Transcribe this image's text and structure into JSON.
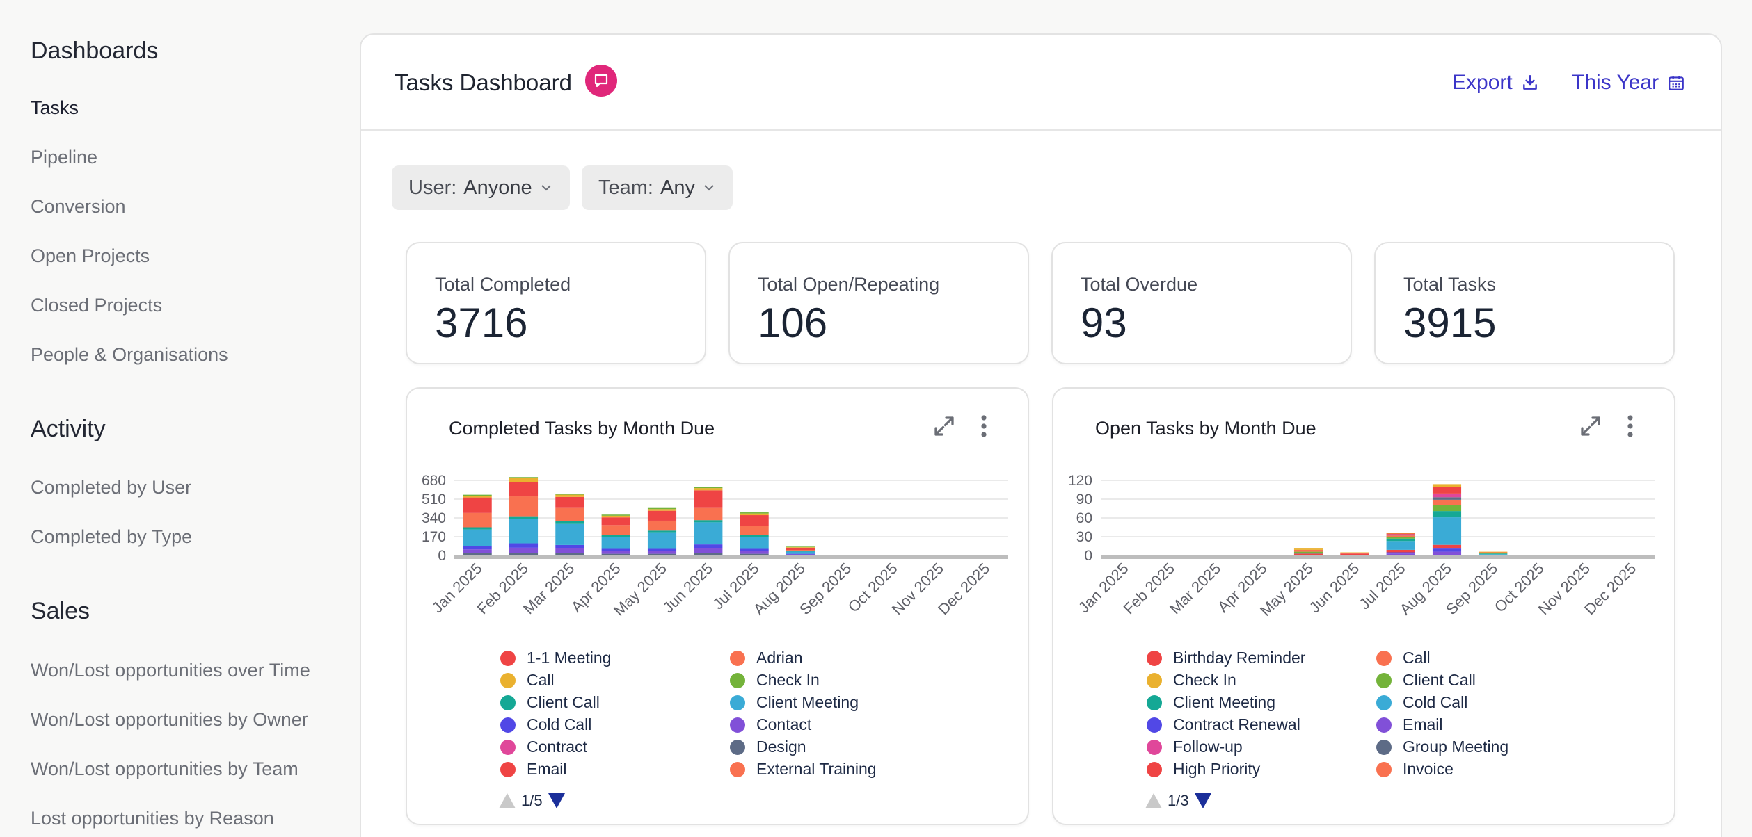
{
  "sidebar": {
    "sections": [
      {
        "heading": "Dashboards",
        "items": [
          "Tasks",
          "Pipeline",
          "Conversion",
          "Open Projects",
          "Closed Projects",
          "People & Organisations"
        ]
      },
      {
        "heading": "Activity",
        "items": [
          "Completed by User",
          "Completed by Type"
        ]
      },
      {
        "heading": "Sales",
        "items": [
          "Won/Lost opportunities over Time",
          "Won/Lost opportunities by Owner",
          "Won/Lost opportunities by Team",
          "Lost opportunities by Reason"
        ]
      }
    ],
    "active_item": "Tasks"
  },
  "header": {
    "title": "Tasks Dashboard",
    "badge_icon": "chat-icon",
    "export_label": "Export",
    "export_icon": "download-icon",
    "period_label": "This Year",
    "period_icon": "calendar-icon"
  },
  "filters": {
    "user_label": "User:",
    "user_value": "Anyone",
    "team_label": "Team:",
    "team_value": "Any"
  },
  "kpis": [
    {
      "label": "Total Completed",
      "value": "3716"
    },
    {
      "label": "Total Open/Repeating",
      "value": "106"
    },
    {
      "label": "Total Overdue",
      "value": "93"
    },
    {
      "label": "Total Tasks",
      "value": "3915"
    }
  ],
  "colors": {
    "accent": "#3b35c8",
    "badge": "#e0277a",
    "palette": [
      "#ef4444",
      "#f97150",
      "#eab12f",
      "#74b33a",
      "#15a895",
      "#3aabd6",
      "#5148e6",
      "#8150d8",
      "#e0479a",
      "#5d6b86"
    ]
  },
  "chart_data": [
    {
      "type": "bar",
      "stacked": true,
      "title": "Completed Tasks by Month Due",
      "categories": [
        "Jan 2025",
        "Feb 2025",
        "Mar 2025",
        "Apr 2025",
        "May 2025",
        "Jun 2025",
        "Jul 2025",
        "Aug 2025",
        "Sep 2025",
        "Oct 2025",
        "Nov 2025",
        "Dec 2025"
      ],
      "yticks": [
        0,
        170,
        340,
        510,
        680
      ],
      "ylim": [
        0,
        680
      ],
      "series": [
        {
          "name": "Design",
          "color": "#5d6b86",
          "values": [
            20,
            25,
            20,
            15,
            15,
            20,
            15,
            5,
            0,
            0,
            0,
            0
          ]
        },
        {
          "name": "Contact",
          "color": "#8150d8",
          "values": [
            35,
            45,
            45,
            25,
            25,
            45,
            25,
            5,
            0,
            0,
            0,
            0
          ]
        },
        {
          "name": "Cold Call",
          "color": "#5148e6",
          "values": [
            30,
            40,
            30,
            20,
            20,
            35,
            20,
            5,
            0,
            0,
            0,
            0
          ]
        },
        {
          "name": "Client Meeting",
          "color": "#3aabd6",
          "values": [
            150,
            220,
            190,
            110,
            150,
            200,
            110,
            20,
            0,
            0,
            0,
            0
          ]
        },
        {
          "name": "Client Call",
          "color": "#15a895",
          "values": [
            20,
            25,
            25,
            15,
            15,
            20,
            15,
            5,
            0,
            0,
            0,
            0
          ]
        },
        {
          "name": "Adrian",
          "color": "#f97150",
          "values": [
            130,
            180,
            120,
            90,
            90,
            110,
            80,
            10,
            0,
            0,
            0,
            0
          ]
        },
        {
          "name": "1-1 Meeting",
          "color": "#ef4444",
          "values": [
            140,
            130,
            100,
            70,
            90,
            160,
            100,
            20,
            0,
            0,
            0,
            0
          ]
        },
        {
          "name": "Call",
          "color": "#eab12f",
          "values": [
            15,
            35,
            20,
            15,
            15,
            20,
            15,
            5,
            0,
            0,
            0,
            0
          ]
        },
        {
          "name": "Check In",
          "color": "#74b33a",
          "values": [
            10,
            10,
            10,
            10,
            10,
            10,
            10,
            5,
            0,
            0,
            0,
            0
          ]
        }
      ],
      "legend": [
        "1-1 Meeting",
        "Adrian",
        "Call",
        "Check In",
        "Client Call",
        "Client Meeting",
        "Cold Call",
        "Contact",
        "Contract",
        "Design",
        "Email",
        "External Training"
      ],
      "legend_colors": [
        "#ef4444",
        "#f97150",
        "#eab12f",
        "#74b33a",
        "#15a895",
        "#3aabd6",
        "#5148e6",
        "#8150d8",
        "#e0479a",
        "#5d6b86",
        "#ef4444",
        "#f97150"
      ],
      "legend_page": "1/5"
    },
    {
      "type": "bar",
      "stacked": true,
      "title": "Open Tasks by Month Due",
      "categories": [
        "Jan 2025",
        "Feb 2025",
        "Mar 2025",
        "Apr 2025",
        "May 2025",
        "Jun 2025",
        "Jul 2025",
        "Aug 2025",
        "Sep 2025",
        "Oct 2025",
        "Nov 2025",
        "Dec 2025"
      ],
      "yticks": [
        0,
        30,
        60,
        90,
        120
      ],
      "ylim": [
        0,
        120
      ],
      "series": [
        {
          "name": "Email",
          "color": "#8150d8",
          "values": [
            0,
            0,
            0,
            0,
            1,
            0,
            3,
            6,
            0,
            0,
            0,
            0
          ]
        },
        {
          "name": "Contract Renewal",
          "color": "#5148e6",
          "values": [
            0,
            0,
            0,
            0,
            0,
            0,
            2,
            5,
            0,
            0,
            0,
            0
          ]
        },
        {
          "name": "Birthday Reminder",
          "color": "#ef4444",
          "values": [
            0,
            0,
            0,
            0,
            2,
            3,
            4,
            6,
            0,
            0,
            0,
            0
          ]
        },
        {
          "name": "Cold Call",
          "color": "#3aabd6",
          "values": [
            0,
            0,
            0,
            0,
            0,
            0,
            14,
            44,
            2,
            0,
            0,
            0
          ]
        },
        {
          "name": "Client Meeting",
          "color": "#15a895",
          "values": [
            0,
            0,
            0,
            0,
            1,
            0,
            4,
            10,
            1,
            0,
            0,
            0
          ]
        },
        {
          "name": "Client Call",
          "color": "#74b33a",
          "values": [
            0,
            0,
            0,
            0,
            2,
            0,
            3,
            10,
            1,
            0,
            0,
            0
          ]
        },
        {
          "name": "Call",
          "color": "#f97150",
          "values": [
            0,
            0,
            0,
            0,
            3,
            1,
            2,
            8,
            1,
            0,
            0,
            0
          ]
        },
        {
          "name": "Group Meeting",
          "color": "#5d6b86",
          "values": [
            0,
            0,
            0,
            0,
            0,
            0,
            1,
            4,
            0,
            0,
            0,
            0
          ]
        },
        {
          "name": "Follow-up",
          "color": "#e0479a",
          "values": [
            0,
            0,
            0,
            0,
            0,
            0,
            1,
            6,
            0,
            0,
            0,
            0
          ]
        },
        {
          "name": "High Priority",
          "color": "#ef4444",
          "values": [
            0,
            0,
            0,
            0,
            0,
            0,
            1,
            10,
            0,
            0,
            0,
            0
          ]
        },
        {
          "name": "Check In",
          "color": "#eab12f",
          "values": [
            0,
            0,
            0,
            0,
            2,
            1,
            1,
            5,
            1,
            0,
            0,
            0
          ]
        }
      ],
      "legend": [
        "Birthday Reminder",
        "Call",
        "Check In",
        "Client Call",
        "Client Meeting",
        "Cold Call",
        "Contract Renewal",
        "Email",
        "Follow-up",
        "Group Meeting",
        "High Priority",
        "Invoice"
      ],
      "legend_colors": [
        "#ef4444",
        "#f97150",
        "#eab12f",
        "#74b33a",
        "#15a895",
        "#3aabd6",
        "#5148e6",
        "#8150d8",
        "#e0479a",
        "#5d6b86",
        "#ef4444",
        "#f97150"
      ],
      "legend_page": "1/3"
    }
  ]
}
